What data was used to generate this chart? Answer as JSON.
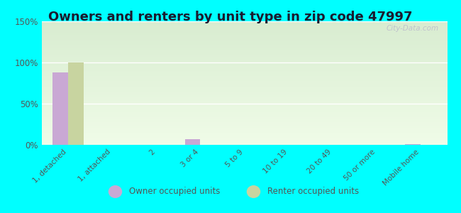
{
  "title": "Owners and renters by unit type in zip code 47997",
  "categories": [
    "1, detached",
    "1, attached",
    "2",
    "3 or 4",
    "5 to 9",
    "10 to 19",
    "20 to 49",
    "50 or more",
    "Mobile home"
  ],
  "owner_values": [
    88,
    0,
    0,
    7,
    0,
    0,
    0,
    0,
    1
  ],
  "renter_values": [
    100,
    0,
    0,
    0,
    0,
    0,
    0,
    0,
    0
  ],
  "owner_color": "#c9a8d4",
  "renter_color": "#c8d4a0",
  "ylim": [
    0,
    150
  ],
  "yticks": [
    0,
    50,
    100,
    150
  ],
  "yticklabels": [
    "0%",
    "50%",
    "100%",
    "150%"
  ],
  "bg_color_top": "#d8ecd0",
  "bg_color_bottom": "#f0fce8",
  "figure_bg": "#00ffff",
  "title_fontsize": 13,
  "title_color": "#1a1a2e",
  "tick_color": "#555555",
  "legend_owner": "Owner occupied units",
  "legend_renter": "Renter occupied units",
  "watermark": "City-Data.com",
  "grid_color": "#ffffff"
}
